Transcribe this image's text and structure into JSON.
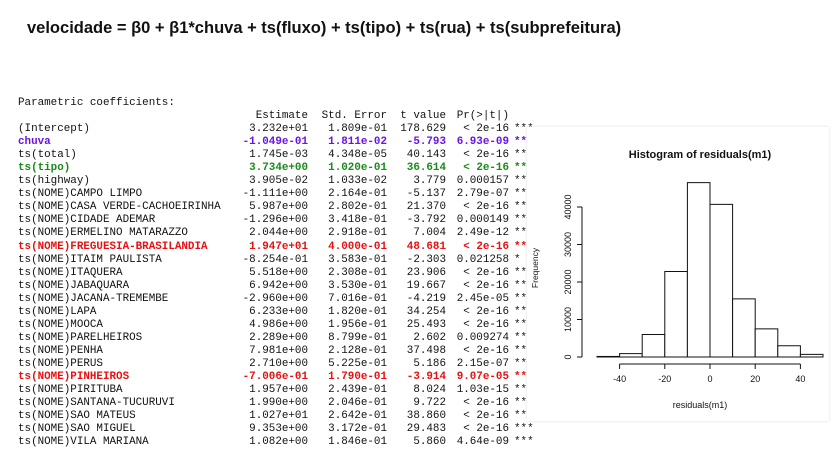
{
  "formula": "velocidade = β0 + β1*chuva + ts(fluxo) + ts(tipo) + ts(rua) + ts(subprefeitura)",
  "coefficients": {
    "title": "Parametric coefficients:",
    "headers": [
      "Estimate",
      "Std. Error",
      "t value",
      "Pr(>|t|)"
    ],
    "rows": [
      {
        "name": "(Intercept)",
        "estimate": "3.232e+01",
        "std_error": "1.809e-01",
        "t_value": "178.629",
        "p_value": "< 2e-16",
        "signif": "***",
        "highlight": ""
      },
      {
        "name": "chuva",
        "estimate": "-1.049e-01",
        "std_error": "1.811e-02",
        "t_value": "-5.793",
        "p_value": "6.93e-09",
        "signif": "***",
        "highlight": "blue"
      },
      {
        "name": "ts(total)",
        "estimate": "1.745e-03",
        "std_error": "4.348e-05",
        "t_value": "40.143",
        "p_value": "< 2e-16",
        "signif": "***",
        "highlight": ""
      },
      {
        "name": "ts(tipo)",
        "estimate": "3.734e+00",
        "std_error": "1.020e-01",
        "t_value": "36.614",
        "p_value": "< 2e-16",
        "signif": "***",
        "highlight": "green"
      },
      {
        "name": "ts(highway)",
        "estimate": "3.905e-02",
        "std_error": "1.033e-02",
        "t_value": "3.779",
        "p_value": "0.000157",
        "signif": "***",
        "highlight": ""
      },
      {
        "name": "ts(NOME)CAMPO LIMPO",
        "estimate": "-1.111e+00",
        "std_error": "2.164e-01",
        "t_value": "-5.137",
        "p_value": "2.79e-07",
        "signif": "***",
        "highlight": ""
      },
      {
        "name": "ts(NOME)CASA VERDE-CACHOEIRINHA",
        "estimate": "5.987e+00",
        "std_error": "2.802e-01",
        "t_value": "21.370",
        "p_value": "< 2e-16",
        "signif": "***",
        "highlight": ""
      },
      {
        "name": "ts(NOME)CIDADE ADEMAR",
        "estimate": "-1.296e+00",
        "std_error": "3.418e-01",
        "t_value": "-3.792",
        "p_value": "0.000149",
        "signif": "***",
        "highlight": ""
      },
      {
        "name": "ts(NOME)ERMELINO MATARAZZO",
        "estimate": "2.044e+00",
        "std_error": "2.918e-01",
        "t_value": "7.004",
        "p_value": "2.49e-12",
        "signif": "***",
        "highlight": ""
      },
      {
        "name": "ts(NOME)FREGUESIA-BRASILANDIA",
        "estimate": "1.947e+01",
        "std_error": "4.000e-01",
        "t_value": "48.681",
        "p_value": "< 2e-16",
        "signif": "***",
        "highlight": "red"
      },
      {
        "name": "ts(NOME)ITAIM PAULISTA",
        "estimate": "-8.254e-01",
        "std_error": "3.583e-01",
        "t_value": "-2.303",
        "p_value": "0.021258",
        "signif": "*",
        "highlight": ""
      },
      {
        "name": "ts(NOME)ITAQUERA",
        "estimate": "5.518e+00",
        "std_error": "2.308e-01",
        "t_value": "23.906",
        "p_value": "< 2e-16",
        "signif": "***",
        "highlight": ""
      },
      {
        "name": "ts(NOME)JABAQUARA",
        "estimate": "6.942e+00",
        "std_error": "3.530e-01",
        "t_value": "19.667",
        "p_value": "< 2e-16",
        "signif": "***",
        "highlight": ""
      },
      {
        "name": "ts(NOME)JACANA-TREMEMBE",
        "estimate": "-2.960e+00",
        "std_error": "7.016e-01",
        "t_value": "-4.219",
        "p_value": "2.45e-05",
        "signif": "***",
        "highlight": ""
      },
      {
        "name": "ts(NOME)LAPA",
        "estimate": "6.233e+00",
        "std_error": "1.820e-01",
        "t_value": "34.254",
        "p_value": "< 2e-16",
        "signif": "***",
        "highlight": ""
      },
      {
        "name": "ts(NOME)MOOCA",
        "estimate": "4.986e+00",
        "std_error": "1.956e-01",
        "t_value": "25.493",
        "p_value": "< 2e-16",
        "signif": "***",
        "highlight": ""
      },
      {
        "name": "ts(NOME)PARELHEIROS",
        "estimate": "2.289e+00",
        "std_error": "8.799e-01",
        "t_value": "2.602",
        "p_value": "0.009274",
        "signif": "**",
        "highlight": ""
      },
      {
        "name": "ts(NOME)PENHA",
        "estimate": "7.981e+00",
        "std_error": "2.128e-01",
        "t_value": "37.498",
        "p_value": "< 2e-16",
        "signif": "***",
        "highlight": ""
      },
      {
        "name": "ts(NOME)PERUS",
        "estimate": "2.710e+00",
        "std_error": "5.225e-01",
        "t_value": "5.186",
        "p_value": "2.15e-07",
        "signif": "***",
        "highlight": ""
      },
      {
        "name": "ts(NOME)PINHEIROS",
        "estimate": "-7.006e-01",
        "std_error": "1.790e-01",
        "t_value": "-3.914",
        "p_value": "9.07e-05",
        "signif": "***",
        "highlight": "red"
      },
      {
        "name": "ts(NOME)PIRITUBA",
        "estimate": "1.957e+00",
        "std_error": "2.439e-01",
        "t_value": "8.024",
        "p_value": "1.03e-15",
        "signif": "***",
        "highlight": ""
      },
      {
        "name": "ts(NOME)SANTANA-TUCURUVI",
        "estimate": "1.990e+00",
        "std_error": "2.046e-01",
        "t_value": "9.722",
        "p_value": "< 2e-16",
        "signif": "***",
        "highlight": ""
      },
      {
        "name": "ts(NOME)SAO MATEUS",
        "estimate": "1.027e+01",
        "std_error": "2.642e-01",
        "t_value": "38.860",
        "p_value": "< 2e-16",
        "signif": "***",
        "highlight": ""
      },
      {
        "name": "ts(NOME)SAO MIGUEL",
        "estimate": "9.353e+00",
        "std_error": "3.172e-01",
        "t_value": "29.483",
        "p_value": "< 2e-16",
        "signif": "***",
        "highlight": ""
      },
      {
        "name": "ts(NOME)VILA MARIANA",
        "estimate": "1.082e+00",
        "std_error": "1.846e-01",
        "t_value": "5.860",
        "p_value": "4.64e-09",
        "signif": "***",
        "highlight": ""
      }
    ]
  },
  "colors": {
    "blue": "#6a12e8",
    "green": "#1a8a1a",
    "red": "#e81010"
  },
  "chart_data": {
    "type": "bar",
    "title": "Histogram of residuals(m1)",
    "xlabel": "residuals(m1)",
    "ylabel": "Frequency",
    "bin_edges": [
      -50,
      -40,
      -30,
      -20,
      -10,
      0,
      10,
      20,
      30,
      40,
      50
    ],
    "values": [
      150,
      900,
      6000,
      22800,
      46500,
      40700,
      15500,
      7500,
      3000,
      700
    ],
    "x_ticks": [
      -40,
      -20,
      0,
      20,
      40
    ],
    "y_ticks": [
      0,
      10000,
      20000,
      30000,
      40000
    ],
    "xlim": [
      -50,
      50
    ],
    "ylim": [
      0,
      48000
    ],
    "grid": false
  }
}
